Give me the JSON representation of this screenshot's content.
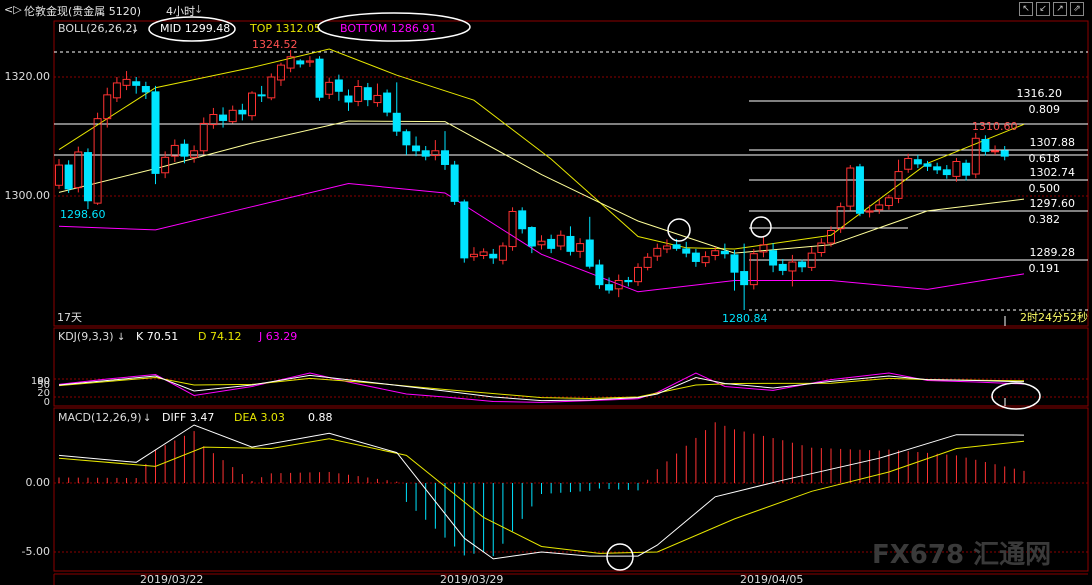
{
  "window": {
    "icons": "<▷",
    "title": "伦敦金现(贵金属 5120)",
    "period": "4小时",
    "period_suffix": "↓",
    "controls": [
      "↖",
      "↙",
      "↗",
      "⇗"
    ]
  },
  "boll": {
    "label": "BOLL(26,26,2)",
    "mid": "MID 1299.48",
    "top": "TOP 1312.05",
    "bottom": "BOTTOM 1286.91",
    "high_label": "1324.52",
    "low_left_label": "1298.60",
    "low_label": "1280.84",
    "recent_high_label": "1310.60",
    "days_label": "17天",
    "countdown_label": "2时24分52秒"
  },
  "price_axis": {
    "ticks": [
      "1320.00",
      "1300.00"
    ]
  },
  "fib_levels": [
    {
      "price": "1316.20",
      "ratio": "0.809"
    },
    {
      "price": "1307.88",
      "ratio": "0.618"
    },
    {
      "price": "1302.74",
      "ratio": "0.500"
    },
    {
      "price": "1297.60",
      "ratio": "0.382"
    },
    {
      "price": "1289.28",
      "ratio": "0.191"
    }
  ],
  "kdj": {
    "label": "KDJ(9,3,3)",
    "k": "K 70.51",
    "d": "D 74.12",
    "j": "J 63.29",
    "ticks": [
      "100",
      "80",
      "50",
      "20",
      "0"
    ]
  },
  "macd": {
    "label": "MACD(12,26,9)",
    "diff": "DIFF 3.47",
    "dea": "DEA 3.03",
    "macd_value": "0.88",
    "ticks": [
      "0.00",
      "-5.00"
    ]
  },
  "dates": [
    "2019/03/22",
    "2019/03/29",
    "2019/04/05"
  ],
  "watermark": "FX678 汇通网",
  "colors": {
    "up": "#ff3232",
    "down": "#00e4ff",
    "mid": "#ffff99",
    "top": "#e6e600",
    "bottom": "#ff00ff",
    "grid": "#8b0000",
    "white": "#ffffff"
  },
  "chart_data": {
    "type": "candlestick",
    "price_range": [
      1278,
      1330
    ],
    "candles": [
      [
        1301.8,
        1305.2,
        1306.2,
        1301.2
      ],
      [
        1305.2,
        1301.2,
        1306.0,
        1300.5
      ],
      [
        1301.4,
        1307.4,
        1308.3,
        1300.6
      ],
      [
        1307.3,
        1299.2,
        1308.0,
        1297.8
      ],
      [
        1298.8,
        1313.0,
        1314.0,
        1298.5
      ],
      [
        1313.0,
        1317.0,
        1318.2,
        1311.5
      ],
      [
        1316.5,
        1319.0,
        1320.0,
        1315.8
      ],
      [
        1318.6,
        1319.6,
        1321.0,
        1317.8
      ],
      [
        1319.2,
        1318.6,
        1320.0,
        1317.2
      ],
      [
        1318.4,
        1317.5,
        1319.2,
        1316.3
      ],
      [
        1317.5,
        1303.8,
        1318.5,
        1302.0
      ],
      [
        1303.9,
        1306.5,
        1307.5,
        1303.0
      ],
      [
        1306.7,
        1308.5,
        1309.5,
        1305.7
      ],
      [
        1308.7,
        1306.7,
        1309.5,
        1305.5
      ],
      [
        1306.5,
        1307.6,
        1308.5,
        1305.6
      ],
      [
        1307.6,
        1312.2,
        1313.2,
        1307.0
      ],
      [
        1312.0,
        1313.7,
        1314.8,
        1311.3
      ],
      [
        1313.6,
        1312.7,
        1314.9,
        1311.5
      ],
      [
        1312.5,
        1314.4,
        1315.2,
        1312.2
      ],
      [
        1314.4,
        1313.8,
        1315.5,
        1312.7
      ],
      [
        1313.5,
        1317.3,
        1317.6,
        1312.7
      ],
      [
        1317.0,
        1316.9,
        1318.5,
        1315.8
      ],
      [
        1316.5,
        1320.0,
        1320.6,
        1316.1
      ],
      [
        1319.5,
        1322.0,
        1322.4,
        1318.5
      ],
      [
        1321.5,
        1323.4,
        1324.52,
        1320.8
      ],
      [
        1322.7,
        1322.2,
        1323.0,
        1321.6
      ],
      [
        1322.5,
        1322.7,
        1323.5,
        1321.7
      ],
      [
        1323.0,
        1316.6,
        1323.5,
        1316.0
      ],
      [
        1317.1,
        1319.1,
        1319.9,
        1316.3
      ],
      [
        1319.5,
        1317.6,
        1320.4,
        1316.0
      ],
      [
        1316.8,
        1315.8,
        1317.9,
        1314.3
      ],
      [
        1315.9,
        1318.4,
        1319.5,
        1315.1
      ],
      [
        1318.2,
        1316.2,
        1319.0,
        1315.1
      ],
      [
        1315.7,
        1316.9,
        1318.9,
        1315.0
      ],
      [
        1317.3,
        1314.1,
        1317.9,
        1313.4
      ],
      [
        1313.9,
        1310.9,
        1319.1,
        1310.1
      ],
      [
        1310.8,
        1308.6,
        1311.2,
        1306.9
      ],
      [
        1308.4,
        1307.6,
        1310.0,
        1306.7
      ],
      [
        1307.6,
        1306.7,
        1308.4,
        1306.0
      ],
      [
        1306.8,
        1307.6,
        1309.4,
        1306.0
      ],
      [
        1307.6,
        1305.3,
        1310.9,
        1304.4
      ],
      [
        1305.2,
        1299.1,
        1305.9,
        1298.5
      ],
      [
        1299.0,
        1289.6,
        1299.4,
        1288.8
      ],
      [
        1289.8,
        1290.2,
        1291.4,
        1289.1
      ],
      [
        1290.0,
        1290.6,
        1291.2,
        1289.4
      ],
      [
        1290.2,
        1289.6,
        1291.1,
        1288.6
      ],
      [
        1289.2,
        1291.6,
        1292.2,
        1288.5
      ],
      [
        1291.5,
        1297.4,
        1298.1,
        1290.8
      ],
      [
        1297.5,
        1294.5,
        1298.1,
        1293.7
      ],
      [
        1294.7,
        1291.6,
        1294.9,
        1290.4
      ],
      [
        1291.8,
        1292.4,
        1293.4,
        1291.0
      ],
      [
        1292.7,
        1291.2,
        1293.5,
        1290.4
      ],
      [
        1291.6,
        1293.4,
        1294.2,
        1290.9
      ],
      [
        1293.2,
        1290.7,
        1294.9,
        1290.0
      ],
      [
        1290.7,
        1292.0,
        1292.9,
        1289.6
      ],
      [
        1292.6,
        1288.2,
        1296.5,
        1287.8
      ],
      [
        1288.4,
        1285.1,
        1289.3,
        1284.4
      ],
      [
        1285.1,
        1284.2,
        1286.3,
        1283.6
      ],
      [
        1284.4,
        1285.8,
        1286.8,
        1283.0
      ],
      [
        1285.8,
        1285.6,
        1286.4,
        1284.8
      ],
      [
        1285.6,
        1288.0,
        1288.7,
        1284.9
      ],
      [
        1288.0,
        1289.7,
        1290.4,
        1287.5
      ],
      [
        1289.9,
        1291.2,
        1292.0,
        1289.1
      ],
      [
        1291.1,
        1291.6,
        1292.7,
        1290.4
      ],
      [
        1291.8,
        1291.2,
        1292.8,
        1290.8
      ],
      [
        1291.1,
        1290.4,
        1292.3,
        1289.7
      ],
      [
        1290.4,
        1289.0,
        1291.1,
        1288.1
      ],
      [
        1288.8,
        1289.8,
        1290.7,
        1288.1
      ],
      [
        1290.0,
        1290.8,
        1291.4,
        1289.2
      ],
      [
        1290.7,
        1290.3,
        1292.0,
        1289.5
      ],
      [
        1290.1,
        1287.2,
        1290.9,
        1284.1
      ],
      [
        1287.3,
        1285.1,
        1292.0,
        1280.84
      ],
      [
        1285.1,
        1290.3,
        1291.1,
        1284.3
      ],
      [
        1290.6,
        1291.8,
        1293.3,
        1289.7
      ],
      [
        1290.8,
        1288.4,
        1292.1,
        1287.2
      ],
      [
        1288.5,
        1287.5,
        1289.4,
        1286.7
      ],
      [
        1287.4,
        1288.9,
        1290.1,
        1284.8
      ],
      [
        1288.9,
        1288.1,
        1289.3,
        1287.2
      ],
      [
        1288.0,
        1290.4,
        1291.4,
        1287.4
      ],
      [
        1290.5,
        1292.1,
        1292.9,
        1289.8
      ],
      [
        1292.1,
        1294.2,
        1294.9,
        1291.5
      ],
      [
        1294.5,
        1298.2,
        1298.9,
        1293.8
      ],
      [
        1298.3,
        1304.7,
        1305.2,
        1297.6
      ],
      [
        1304.9,
        1297.1,
        1305.4,
        1296.6
      ],
      [
        1297.3,
        1297.5,
        1298.5,
        1296.4
      ],
      [
        1297.7,
        1298.5,
        1299.4,
        1297.0
      ],
      [
        1298.4,
        1299.7,
        1300.2,
        1297.7
      ],
      [
        1299.6,
        1304.1,
        1306.1,
        1298.8
      ],
      [
        1304.5,
        1306.3,
        1307.1,
        1303.9
      ],
      [
        1306.1,
        1305.4,
        1306.9,
        1304.7
      ],
      [
        1305.4,
        1305.0,
        1305.9,
        1304.2
      ],
      [
        1304.9,
        1304.4,
        1305.6,
        1303.7
      ],
      [
        1304.4,
        1303.6,
        1305.2,
        1302.9
      ],
      [
        1303.3,
        1305.8,
        1306.4,
        1302.4
      ],
      [
        1305.5,
        1303.5,
        1306.1,
        1302.6
      ],
      [
        1303.7,
        1309.7,
        1310.6,
        1303.0
      ],
      [
        1309.5,
        1307.5,
        1310.2,
        1306.8
      ],
      [
        1307.5,
        1307.6,
        1308.5,
        1306.9
      ],
      [
        1307.6,
        1306.7,
        1308.4,
        1306.0
      ]
    ],
    "mid_curve": [
      [
        0,
        1300.6
      ],
      [
        10,
        1304.6
      ],
      [
        20,
        1308.9
      ],
      [
        30,
        1312.6
      ],
      [
        40,
        1312.5
      ],
      [
        50,
        1303.6
      ],
      [
        60,
        1295.8
      ],
      [
        70,
        1290.4
      ],
      [
        80,
        1291.8
      ],
      [
        90,
        1297.5
      ],
      [
        100,
        1299.48
      ]
    ],
    "top_curve": [
      [
        0,
        1307.8
      ],
      [
        10,
        1318.2
      ],
      [
        20,
        1321.6
      ],
      [
        28,
        1324.7
      ],
      [
        35,
        1320.3
      ],
      [
        43,
        1316.1
      ],
      [
        51,
        1306.2
      ],
      [
        60,
        1293.2
      ],
      [
        65,
        1291.3
      ],
      [
        70,
        1291.1
      ],
      [
        80,
        1293.4
      ],
      [
        90,
        1305.5
      ],
      [
        100,
        1312.05
      ]
    ],
    "bottom_curve": [
      [
        0,
        1294.9
      ],
      [
        10,
        1294.3
      ],
      [
        20,
        1298.2
      ],
      [
        30,
        1302.1
      ],
      [
        40,
        1300.5
      ],
      [
        50,
        1290.2
      ],
      [
        60,
        1283.9
      ],
      [
        70,
        1285.8
      ],
      [
        80,
        1285.8
      ],
      [
        90,
        1284.3
      ],
      [
        100,
        1286.91
      ]
    ],
    "kdj_k": [
      [
        0,
        60
      ],
      [
        5,
        75
      ],
      [
        10,
        90
      ],
      [
        14,
        40
      ],
      [
        20,
        60
      ],
      [
        26,
        92
      ],
      [
        32,
        70
      ],
      [
        40,
        40
      ],
      [
        45,
        20
      ],
      [
        50,
        8
      ],
      [
        55,
        10
      ],
      [
        60,
        18
      ],
      [
        62,
        30
      ],
      [
        66,
        85
      ],
      [
        69,
        65
      ],
      [
        74,
        50
      ],
      [
        80,
        72
      ],
      [
        86,
        90
      ],
      [
        90,
        78
      ],
      [
        95,
        75
      ],
      [
        100,
        70.51
      ]
    ],
    "kdj_d": [
      [
        0,
        58
      ],
      [
        10,
        85
      ],
      [
        14,
        60
      ],
      [
        20,
        62
      ],
      [
        26,
        82
      ],
      [
        32,
        68
      ],
      [
        40,
        45
      ],
      [
        50,
        18
      ],
      [
        55,
        15
      ],
      [
        60,
        20
      ],
      [
        66,
        60
      ],
      [
        70,
        65
      ],
      [
        80,
        66
      ],
      [
        86,
        82
      ],
      [
        90,
        78
      ],
      [
        95,
        76
      ],
      [
        100,
        74.12
      ]
    ],
    "kdj_j": [
      [
        0,
        62
      ],
      [
        5,
        80
      ],
      [
        10,
        95
      ],
      [
        14,
        25
      ],
      [
        20,
        55
      ],
      [
        26,
        100
      ],
      [
        30,
        70
      ],
      [
        36,
        30
      ],
      [
        40,
        20
      ],
      [
        45,
        5
      ],
      [
        50,
        2
      ],
      [
        55,
        8
      ],
      [
        60,
        14
      ],
      [
        62,
        35
      ],
      [
        66,
        100
      ],
      [
        69,
        55
      ],
      [
        74,
        42
      ],
      [
        80,
        78
      ],
      [
        86,
        100
      ],
      [
        90,
        75
      ],
      [
        95,
        70
      ],
      [
        100,
        63.29
      ]
    ],
    "macd_diff": [
      [
        0,
        2.0
      ],
      [
        8,
        1.5
      ],
      [
        14,
        4.2
      ],
      [
        20,
        2.6
      ],
      [
        28,
        3.6
      ],
      [
        35,
        2.2
      ],
      [
        42,
        -4.0
      ],
      [
        45,
        -5.5
      ],
      [
        50,
        -5.0
      ],
      [
        55,
        -5.3
      ],
      [
        60,
        -5.3
      ],
      [
        62,
        -4.5
      ],
      [
        68,
        -1.0
      ],
      [
        75,
        0.2
      ],
      [
        85,
        1.8
      ],
      [
        93,
        3.5
      ],
      [
        100,
        3.47
      ]
    ],
    "macd_dea": [
      [
        0,
        1.8
      ],
      [
        10,
        1.2
      ],
      [
        15,
        2.6
      ],
      [
        22,
        2.5
      ],
      [
        28,
        3.2
      ],
      [
        36,
        2.0
      ],
      [
        44,
        -2.5
      ],
      [
        50,
        -4.6
      ],
      [
        56,
        -5.1
      ],
      [
        62,
        -5.0
      ],
      [
        70,
        -2.6
      ],
      [
        78,
        -0.6
      ],
      [
        86,
        0.8
      ],
      [
        93,
        2.5
      ],
      [
        100,
        3.03
      ]
    ]
  }
}
